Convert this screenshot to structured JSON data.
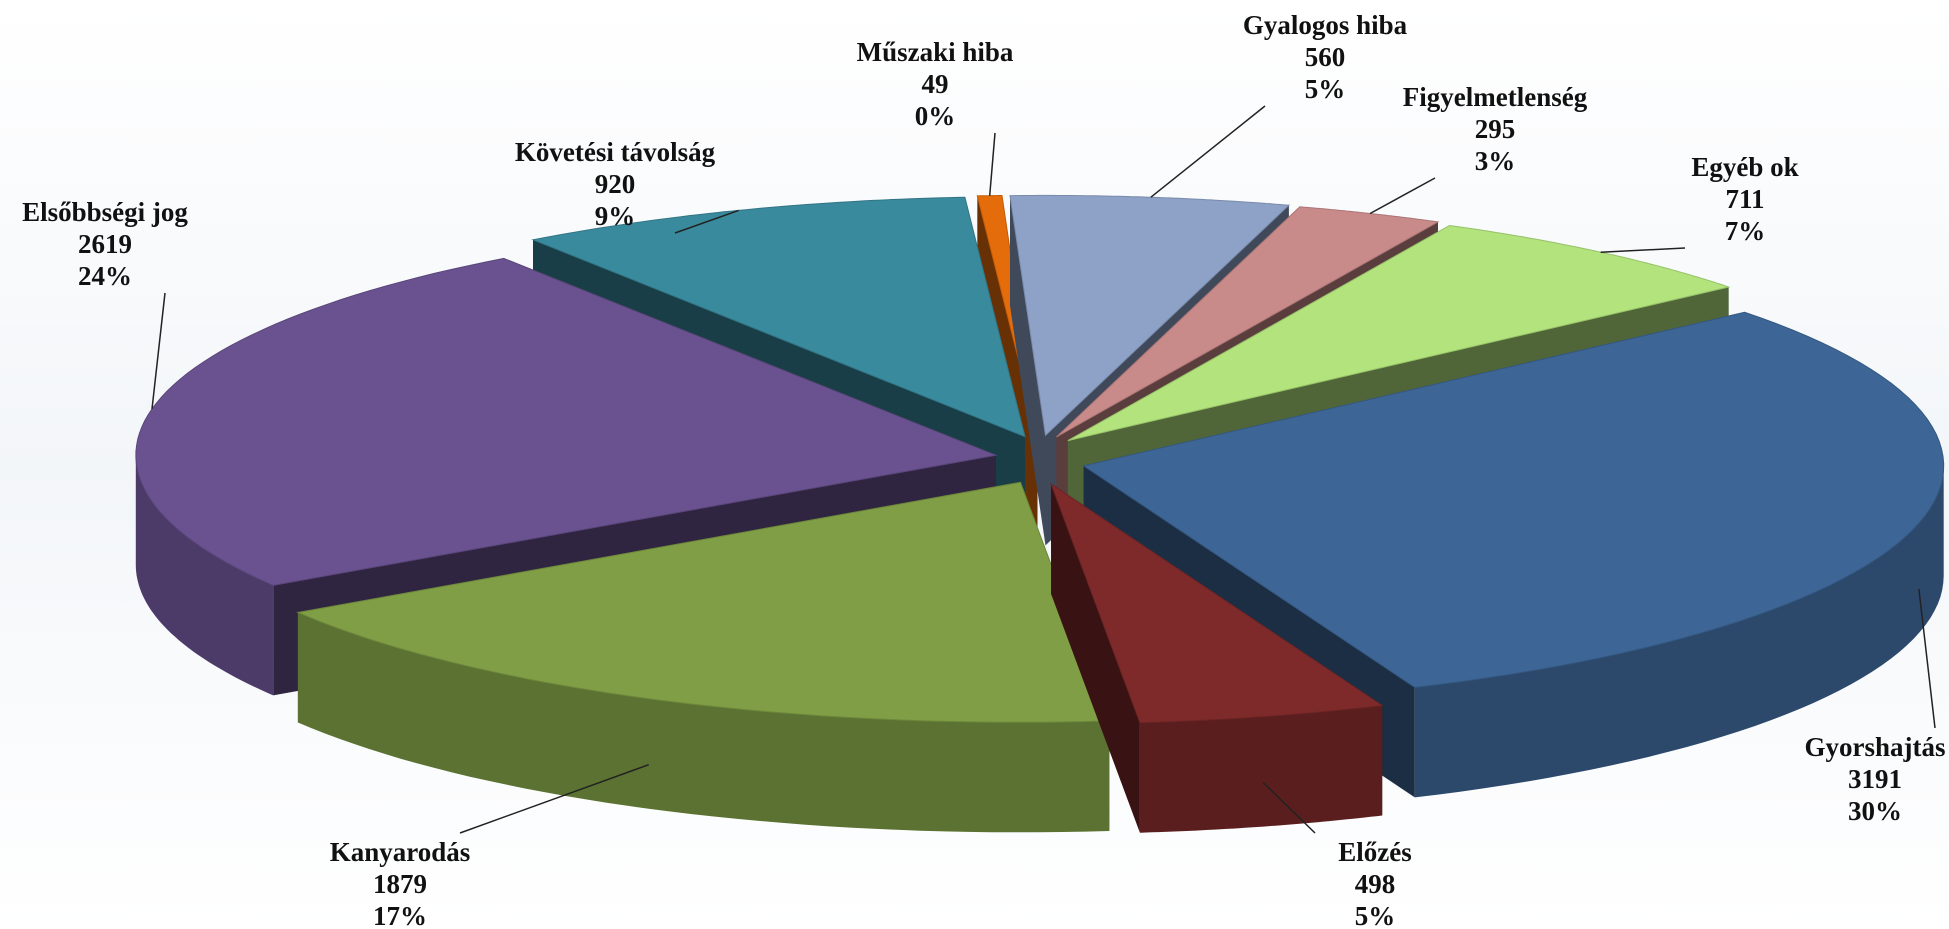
{
  "chart_data": {
    "type": "pie3d",
    "categories": [
      "Műszaki hiba",
      "Gyalogos hiba",
      "Figyelmetlenség",
      "Egyéb ok",
      "Gyorshajtás",
      "Előzés",
      "Kanyarodás",
      "Elsőbbségi jog",
      "Követési távolság"
    ],
    "values": [
      49,
      560,
      295,
      711,
      3191,
      498,
      1879,
      2619,
      920
    ],
    "percent_labels": [
      "0%",
      "5%",
      "3%",
      "7%",
      "30%",
      "5%",
      "17%",
      "24%",
      "9%"
    ],
    "colors": [
      "#e46c0a",
      "#8ea2c8",
      "#c98a8a",
      "#b2e37c",
      "#3d6696",
      "#7f2a2a",
      "#7f9e45",
      "#6a5290",
      "#3a8a9e"
    ]
  }
}
